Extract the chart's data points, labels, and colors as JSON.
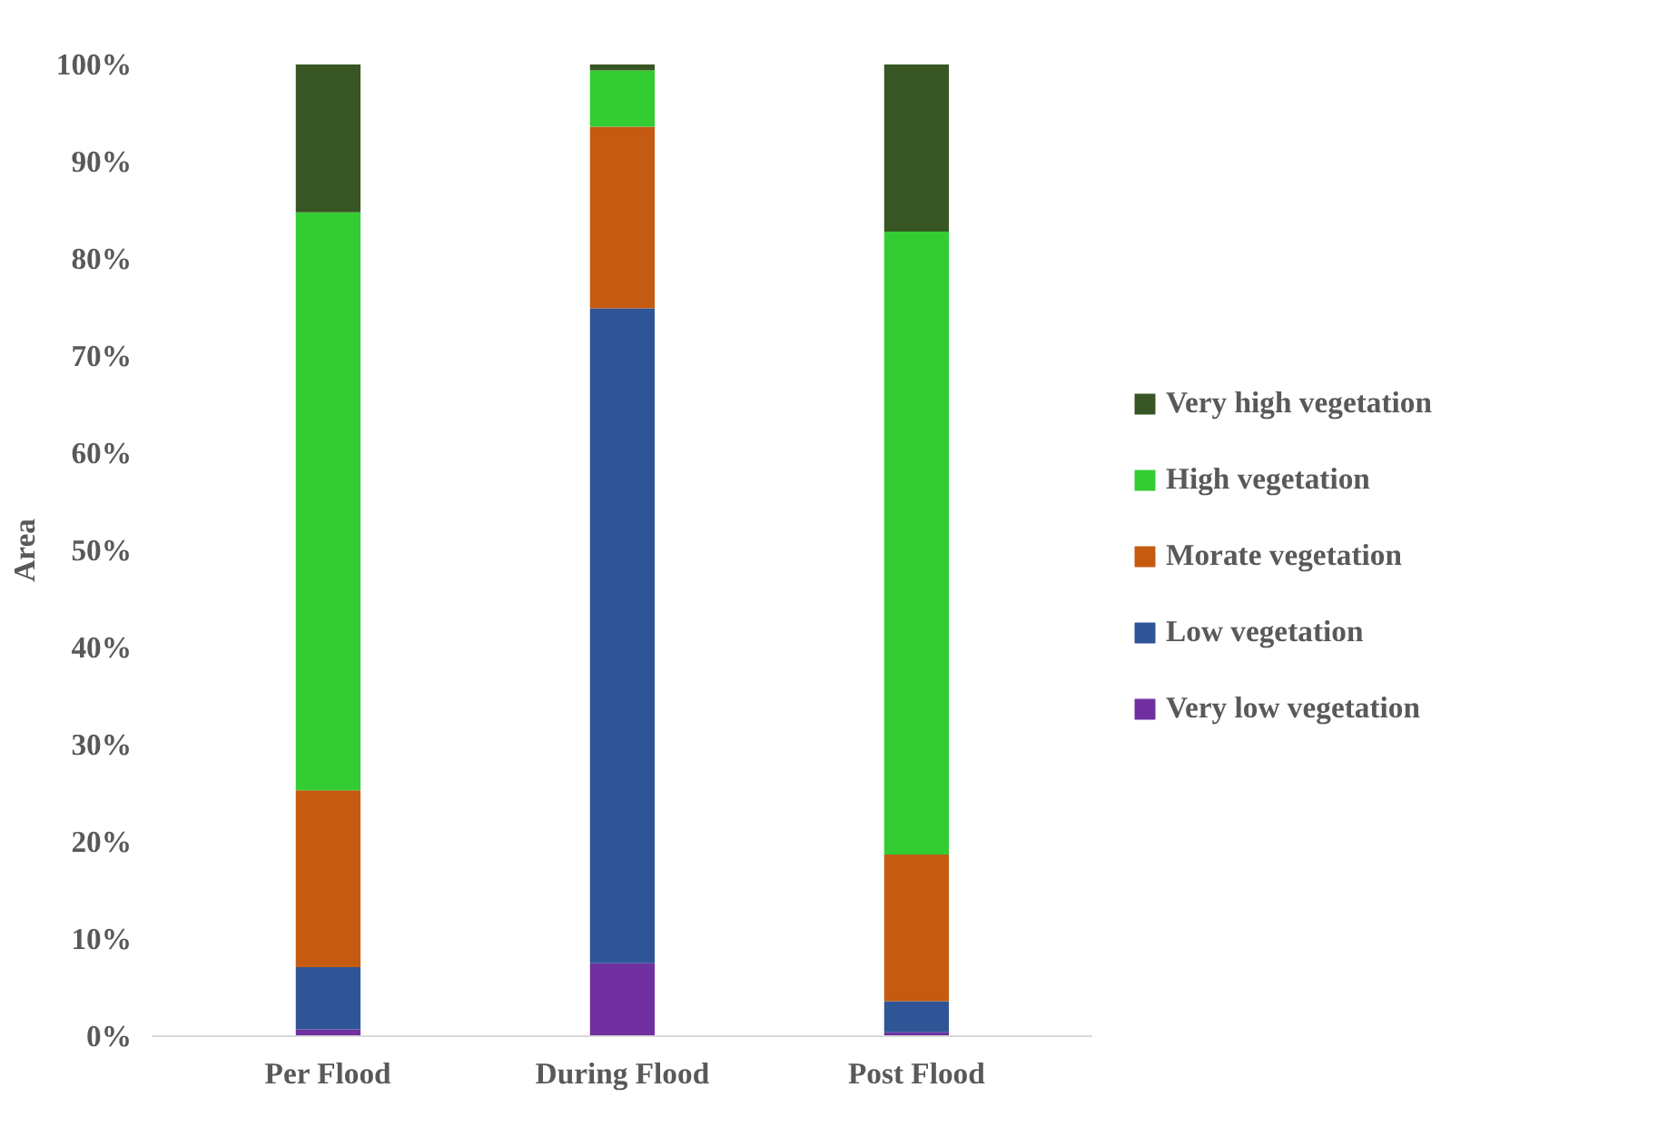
{
  "chart_data": {
    "type": "bar",
    "stacked": true,
    "ylabel": "Area",
    "categories": [
      "Per Flood",
      "During Flood",
      "Post Flood"
    ],
    "series": [
      {
        "name": "Very low vegetation",
        "color": "#7030a0",
        "values": [
          0.7,
          7.5,
          0.4
        ]
      },
      {
        "name": "Low vegetation",
        "color": "#2f5597",
        "values": [
          6.4,
          67.4,
          3.2
        ]
      },
      {
        "name": "Morate vegetation",
        "color": "#c55a11",
        "values": [
          18.2,
          18.7,
          15.1
        ]
      },
      {
        "name": "High vegetation",
        "color": "#33cc33",
        "values": [
          59.5,
          5.8,
          64.1
        ]
      },
      {
        "name": "Very high vegetation",
        "color": "#375623",
        "values": [
          15.2,
          0.6,
          17.2
        ]
      }
    ],
    "ylim": [
      0,
      100
    ],
    "yticks": [
      {
        "value": 0,
        "label": "0%"
      },
      {
        "value": 10,
        "label": "10%"
      },
      {
        "value": 20,
        "label": "20%"
      },
      {
        "value": 30,
        "label": "30%"
      },
      {
        "value": 40,
        "label": "40%"
      },
      {
        "value": 50,
        "label": "50%"
      },
      {
        "value": 60,
        "label": "60%"
      },
      {
        "value": 70,
        "label": "70%"
      },
      {
        "value": 80,
        "label": "80%"
      },
      {
        "value": 90,
        "label": "90%"
      },
      {
        "value": 100,
        "label": "100%"
      }
    ],
    "grid": false,
    "legend": "right"
  }
}
